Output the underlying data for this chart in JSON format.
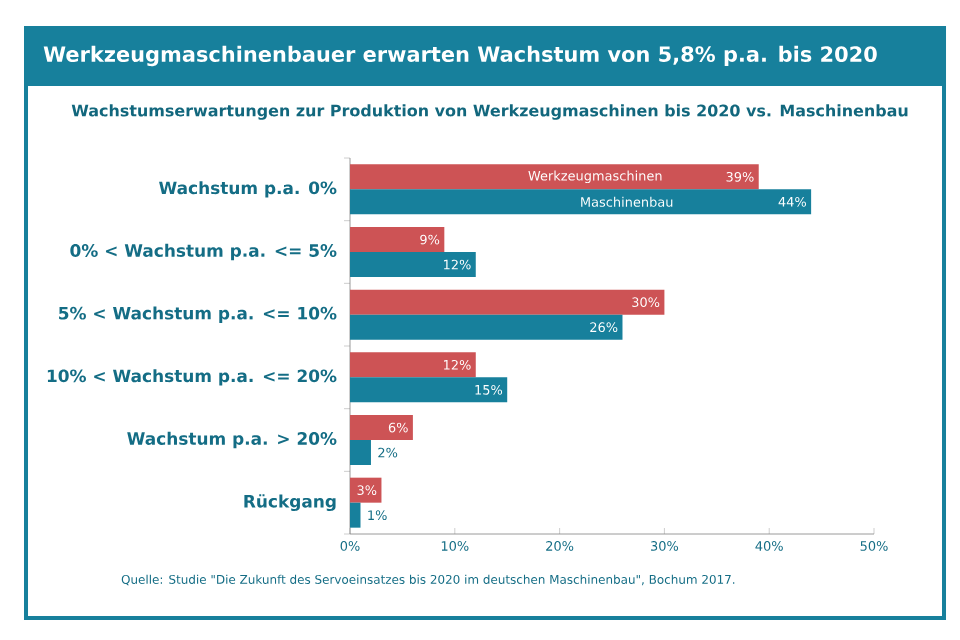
{
  "chart_data": {
    "type": "bar",
    "orientation": "horizontal",
    "title": "Werkzeugmaschinenbauer erwarten Wachstum von 5,8% p.a. bis 2020",
    "subtitle": "Wachstumserwartungen zur Produktion von Werkzeugmaschinen bis 2020 vs. Maschinenbau",
    "categories": [
      "Wachstum p.a. 0%",
      "0% < Wachstum p.a. <= 5%",
      "5% < Wachstum p.a. <= 10%",
      "10% < Wachstum p.a. <= 20%",
      "Wachstum p.a. > 20%",
      "Rückgang"
    ],
    "series": [
      {
        "name": "Werkzeugmaschinen",
        "color": "#cd5355",
        "values": [
          39,
          9,
          30,
          12,
          6,
          3
        ],
        "value_labels": [
          "39%",
          "9%",
          "30%",
          "12%",
          "6%",
          "3%"
        ]
      },
      {
        "name": "Maschinenbau",
        "color": "#17809c",
        "values": [
          44,
          12,
          26,
          15,
          2,
          1
        ],
        "value_labels": [
          "44%",
          "12%",
          "26%",
          "15%",
          "2%",
          "1%"
        ]
      }
    ],
    "xlim": [
      0,
      50
    ],
    "xticks": [
      {
        "value": 0,
        "label": "0%"
      },
      {
        "value": 10,
        "label": "10%"
      },
      {
        "value": 20,
        "label": "20%"
      },
      {
        "value": 30,
        "label": "30%"
      },
      {
        "value": 40,
        "label": "40%"
      },
      {
        "value": 50,
        "label": "50%"
      }
    ],
    "grid": false,
    "legend": false,
    "annotations": [
      "Quelle: Studie \"Die Zukunft des Servoeinsatzes bis 2020 im deutschen Maschinenbau\", Bochum 2017."
    ]
  }
}
